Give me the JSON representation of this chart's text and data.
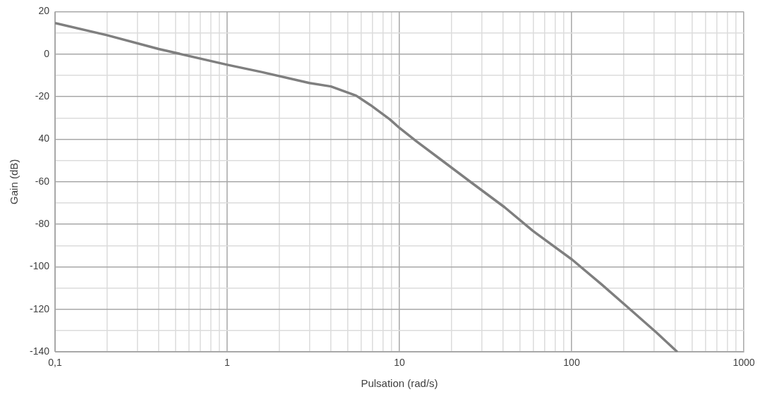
{
  "chart_data": {
    "type": "line",
    "xlabel": "Pulsation (rad/s)",
    "ylabel": "Gain (dB)",
    "log": "x",
    "grid": true,
    "legend": false,
    "marker": "none",
    "line_style": "solid",
    "x": [
      0.1,
      0.2,
      0.4,
      1,
      1.58,
      3,
      4,
      5.6,
      6.8,
      8.8,
      10,
      12.5,
      17.2,
      25.2,
      40.8,
      59.3,
      100.6,
      150,
      228,
      311,
      411
    ],
    "series": [
      {
        "color": "#7f7f7f",
        "values": [
          14.6,
          8.9,
          2.4,
          -5,
          -8.4,
          -13.6,
          -15.2,
          -19.5,
          -24,
          -30.7,
          -34.7,
          -40.9,
          -49.3,
          -59.4,
          -72,
          -83,
          -96.6,
          -108.4,
          -121.3,
          -130.9,
          -140
        ]
      }
    ],
    "xlim": [
      0.1,
      1000
    ],
    "xticks": [
      {
        "value": 0.1,
        "label": "0,1"
      },
      {
        "value": 0.2,
        "label": null
      },
      {
        "value": 0.3,
        "label": null
      },
      {
        "value": 0.4,
        "label": null
      },
      {
        "value": 0.5,
        "label": null
      },
      {
        "value": 0.6,
        "label": null
      },
      {
        "value": 0.7,
        "label": null
      },
      {
        "value": 0.8,
        "label": null
      },
      {
        "value": 0.9,
        "label": null
      },
      1,
      {
        "value": 2,
        "label": null
      },
      {
        "value": 3,
        "label": null
      },
      {
        "value": 4,
        "label": null
      },
      {
        "value": 5,
        "label": null
      },
      {
        "value": 6,
        "label": null
      },
      {
        "value": 7,
        "label": null
      },
      {
        "value": 8,
        "label": null
      },
      {
        "value": 9,
        "label": null
      },
      10,
      {
        "value": 20,
        "label": null
      },
      {
        "value": 30,
        "label": null
      },
      {
        "value": 40,
        "label": null
      },
      {
        "value": 50,
        "label": null
      },
      {
        "value": 60,
        "label": null
      },
      {
        "value": 70,
        "label": null
      },
      {
        "value": 80,
        "label": null
      },
      {
        "value": 90,
        "label": null
      },
      100,
      {
        "value": 200,
        "label": null
      },
      {
        "value": 300,
        "label": null
      },
      {
        "value": 400,
        "label": null
      },
      {
        "value": 500,
        "label": null
      },
      {
        "value": 600,
        "label": null
      },
      {
        "value": 700,
        "label": null
      },
      {
        "value": 800,
        "label": null
      },
      {
        "value": 900,
        "label": null
      },
      1000
    ],
    "ylim": [
      -140,
      20
    ],
    "yticks": [
      20,
      {
        "value": 10,
        "label": null
      },
      0,
      {
        "value": -10,
        "label": null
      },
      -20,
      {
        "value": -30,
        "label": null
      },
      {
        "value": -40,
        "label": "40"
      },
      {
        "value": -50,
        "label": null
      },
      -60,
      {
        "value": -70,
        "label": null
      },
      -80,
      {
        "value": -90,
        "label": null
      },
      -100,
      {
        "value": -110,
        "label": null
      },
      -120,
      {
        "value": -130,
        "label": null
      },
      -140
    ]
  }
}
